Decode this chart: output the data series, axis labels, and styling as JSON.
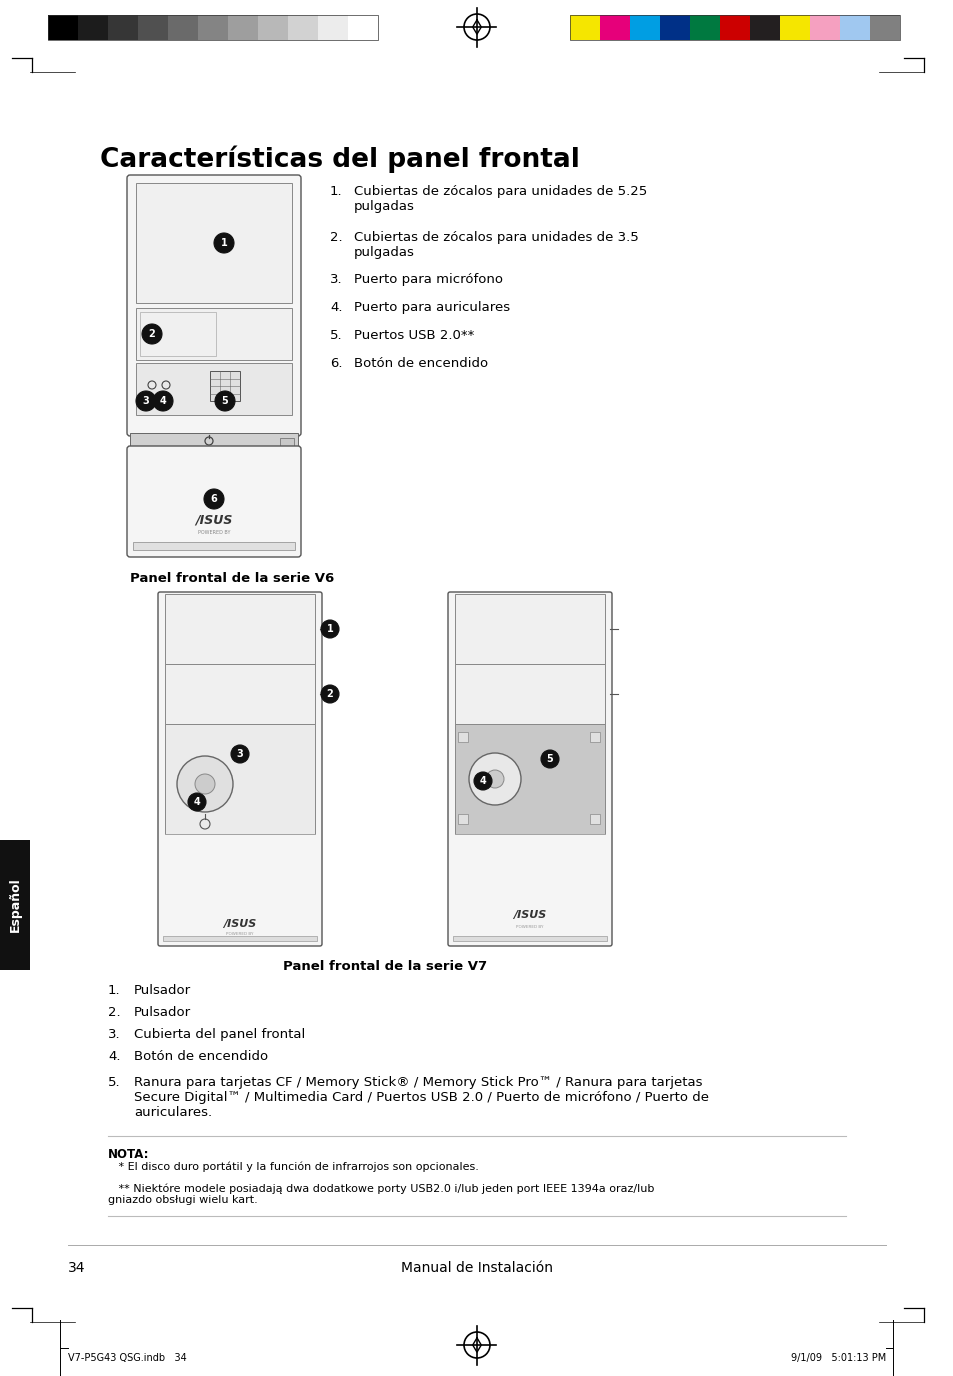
{
  "title": "Características del panel frontal",
  "bg_color": "#ffffff",
  "text_color": "#000000",
  "page_number": "34",
  "footer_center": "Manual de Instalación",
  "footer_left": "V7-P5G43 QSG.indb   34",
  "footer_right": "9/1/09   5:01:13 PM",
  "v6_items": [
    "Cubiertas de zócalos para unidades de 5.25\npulgadas",
    "Cubiertas de zócalos para unidades de 3.5\npulgadas",
    "Puerto para micrófono",
    "Puerto para auriculares",
    "Puertos USB 2.0**",
    "Botón de encendido"
  ],
  "v6_caption": "Panel frontal de la serie V6",
  "v7_caption": "Panel frontal de la serie V7",
  "v7_items": [
    "Pulsador",
    "Pulsador",
    "Cubierta del panel frontal",
    "Botón de encendido",
    "Ranura para tarjetas CF / Memory Stick® / Memory Stick Pro™ / Ranura para tarjetas\nSecure Digital™ / Multimedia Card / Puertos USB 2.0 / Puerto de micrófono / Puerto de\nauriculares."
  ],
  "note_title": "NOTA:",
  "note_line1": "   * El disco duro portátil y la función de infrarrojos son opcionales.",
  "note_line2": "   ** Niektóre modele posiadają dwa dodatkowe porty USB2.0 i/lub jeden port IEEE 1394a oraz/lub\ngniazdo obsługi wielu kart.",
  "sidebar_text": "Español",
  "sidebar_color": "#111111",
  "sidebar_text_color": "#ffffff",
  "grayscale_colors": [
    "#000000",
    "#1c1c1c",
    "#363636",
    "#505050",
    "#6a6a6a",
    "#848484",
    "#9e9e9e",
    "#b8b8b8",
    "#d2d2d2",
    "#ececec",
    "#ffffff"
  ],
  "cmyk_colors": [
    "#f5e600",
    "#e6007a",
    "#009ee3",
    "#003087",
    "#007940",
    "#cc0000",
    "#231f20",
    "#f5e600",
    "#f5a0c0",
    "#a0c8f0",
    "#808080"
  ],
  "crosshair_color": "#000000"
}
